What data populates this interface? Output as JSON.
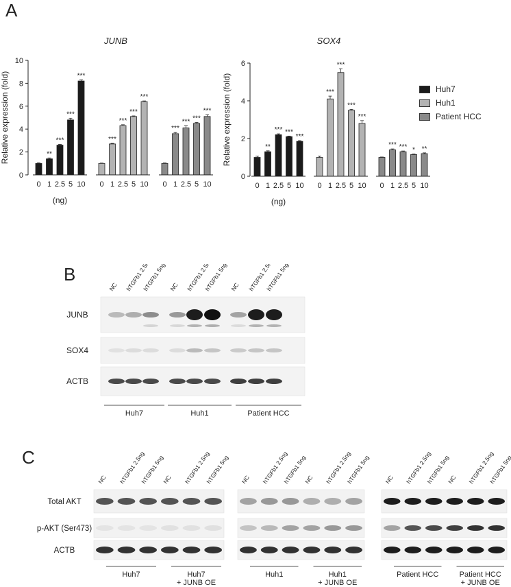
{
  "panels": {
    "a_letter": "A",
    "b_letter": "B",
    "c_letter": "C"
  },
  "colors": {
    "Huh7": "#1b1b1b",
    "Huh1": "#b3b3b3",
    "Patient HCC": "#8a8a8a"
  },
  "chart_data": [
    {
      "type": "bar",
      "title": "JUNB",
      "ylabel": "Relative expression (fold)",
      "xlabel": "(ng)",
      "ylim": [
        0,
        10
      ],
      "yticks": [
        0,
        2,
        4,
        6,
        8,
        10
      ],
      "categories": [
        "0",
        "1",
        "2.5",
        "5",
        "10"
      ],
      "series": [
        {
          "name": "Huh7",
          "values": [
            1.0,
            1.4,
            2.6,
            4.8,
            8.2
          ],
          "errors": [
            0.05,
            0.08,
            0.07,
            0.15,
            0.1
          ],
          "stars": [
            "",
            "**",
            "***",
            "***",
            "***"
          ]
        },
        {
          "name": "Huh1",
          "values": [
            1.0,
            2.7,
            4.3,
            5.1,
            6.4
          ],
          "errors": [
            0.03,
            0.05,
            0.08,
            0.05,
            0.06
          ],
          "stars": [
            "",
            "***",
            "***",
            "***",
            "***"
          ]
        },
        {
          "name": "Patient HCC",
          "values": [
            1.0,
            3.6,
            4.1,
            4.5,
            5.1
          ],
          "errors": [
            0.04,
            0.1,
            0.18,
            0.08,
            0.15
          ],
          "stars": [
            "",
            "***",
            "***",
            "***",
            "***"
          ]
        }
      ]
    },
    {
      "type": "bar",
      "title": "SOX4",
      "ylabel": "Relative expression (fold)",
      "xlabel": "(ng)",
      "ylim": [
        0,
        6
      ],
      "yticks": [
        0,
        2,
        4,
        6
      ],
      "categories": [
        "0",
        "1",
        "2.5",
        "5",
        "10"
      ],
      "series": [
        {
          "name": "Huh7",
          "values": [
            1.0,
            1.3,
            2.2,
            2.1,
            1.85
          ],
          "errors": [
            0.06,
            0.05,
            0.05,
            0.03,
            0.04
          ],
          "stars": [
            "",
            "**",
            "***",
            "***",
            "***"
          ]
        },
        {
          "name": "Huh1",
          "values": [
            1.0,
            4.1,
            5.5,
            3.5,
            2.8
          ],
          "errors": [
            0.06,
            0.15,
            0.2,
            0.05,
            0.15
          ],
          "stars": [
            "",
            "***",
            "***",
            "***",
            "***"
          ]
        },
        {
          "name": "Patient HCC",
          "values": [
            1.0,
            1.4,
            1.3,
            1.15,
            1.2
          ],
          "errors": [
            0.02,
            0.05,
            0.04,
            0.03,
            0.04
          ],
          "stars": [
            "",
            "***",
            "***",
            "*",
            "**"
          ]
        }
      ]
    }
  ],
  "legend": [
    {
      "label": "Huh7",
      "color": "#1b1b1b"
    },
    {
      "label": "Huh1",
      "color": "#b3b3b3"
    },
    {
      "label": "Patient HCC",
      "color": "#8a8a8a"
    }
  ],
  "blot_b": {
    "lanes": [
      "NC",
      "hTGFb1 2.5ng",
      "hTGFb1 5ng",
      "NC",
      "hTGFb1 2.5ng",
      "hTGFb1 5ng",
      "NC",
      "hTGFb1 2.5ng",
      "hTGFb1 5ng"
    ],
    "rows": [
      {
        "label": "JUNB",
        "intensity": [
          0.25,
          0.3,
          0.45,
          0.4,
          0.95,
          1.0,
          0.35,
          0.95,
          0.95
        ]
      },
      {
        "label": "SOX4",
        "intensity": [
          0.08,
          0.1,
          0.1,
          0.1,
          0.25,
          0.2,
          0.18,
          0.2,
          0.2
        ]
      },
      {
        "label": "ACTB",
        "intensity": [
          0.75,
          0.75,
          0.75,
          0.75,
          0.75,
          0.75,
          0.8,
          0.8,
          0.8
        ]
      }
    ],
    "groups": [
      "Huh7",
      "Huh1",
      "Patient HCC"
    ]
  },
  "blot_c": {
    "lanes": [
      "NC",
      "hTGFb1 2.5ng",
      "hTGFb1 5ng",
      "NC",
      "hTGFb1 2.5ng",
      "hTGFb1 5ng"
    ],
    "rows": [
      {
        "label": "Total AKT"
      },
      {
        "label": "p-AKT (Ser473)"
      },
      {
        "label": "ACTB"
      }
    ],
    "blocks": [
      {
        "intensities": [
          [
            0.7,
            0.7,
            0.7,
            0.7,
            0.7,
            0.7
          ],
          [
            0.06,
            0.06,
            0.06,
            0.07,
            0.07,
            0.08
          ],
          [
            0.85,
            0.85,
            0.85,
            0.85,
            0.85,
            0.85
          ]
        ],
        "groups": [
          {
            "line1": "Huh7",
            "line2": ""
          },
          {
            "line1": "Huh7",
            "line2": "+ JUNB OE"
          }
        ]
      },
      {
        "intensities": [
          [
            0.35,
            0.4,
            0.4,
            0.3,
            0.3,
            0.35
          ],
          [
            0.2,
            0.25,
            0.35,
            0.35,
            0.4,
            0.4
          ],
          [
            0.85,
            0.85,
            0.85,
            0.85,
            0.85,
            0.85
          ]
        ],
        "groups": [
          {
            "line1": "Huh1",
            "line2": ""
          },
          {
            "line1": "Huh1",
            "line2": "+ JUNB OE"
          }
        ]
      },
      {
        "intensities": [
          [
            0.95,
            0.95,
            0.95,
            0.95,
            0.95,
            0.95
          ],
          [
            0.35,
            0.7,
            0.75,
            0.8,
            0.85,
            0.85
          ],
          [
            0.95,
            0.95,
            0.95,
            0.95,
            0.95,
            0.95
          ]
        ],
        "groups": [
          {
            "line1": "Patient HCC",
            "line2": ""
          },
          {
            "line1": "Patient HCC",
            "line2": "+ JUNB OE"
          }
        ]
      }
    ]
  }
}
